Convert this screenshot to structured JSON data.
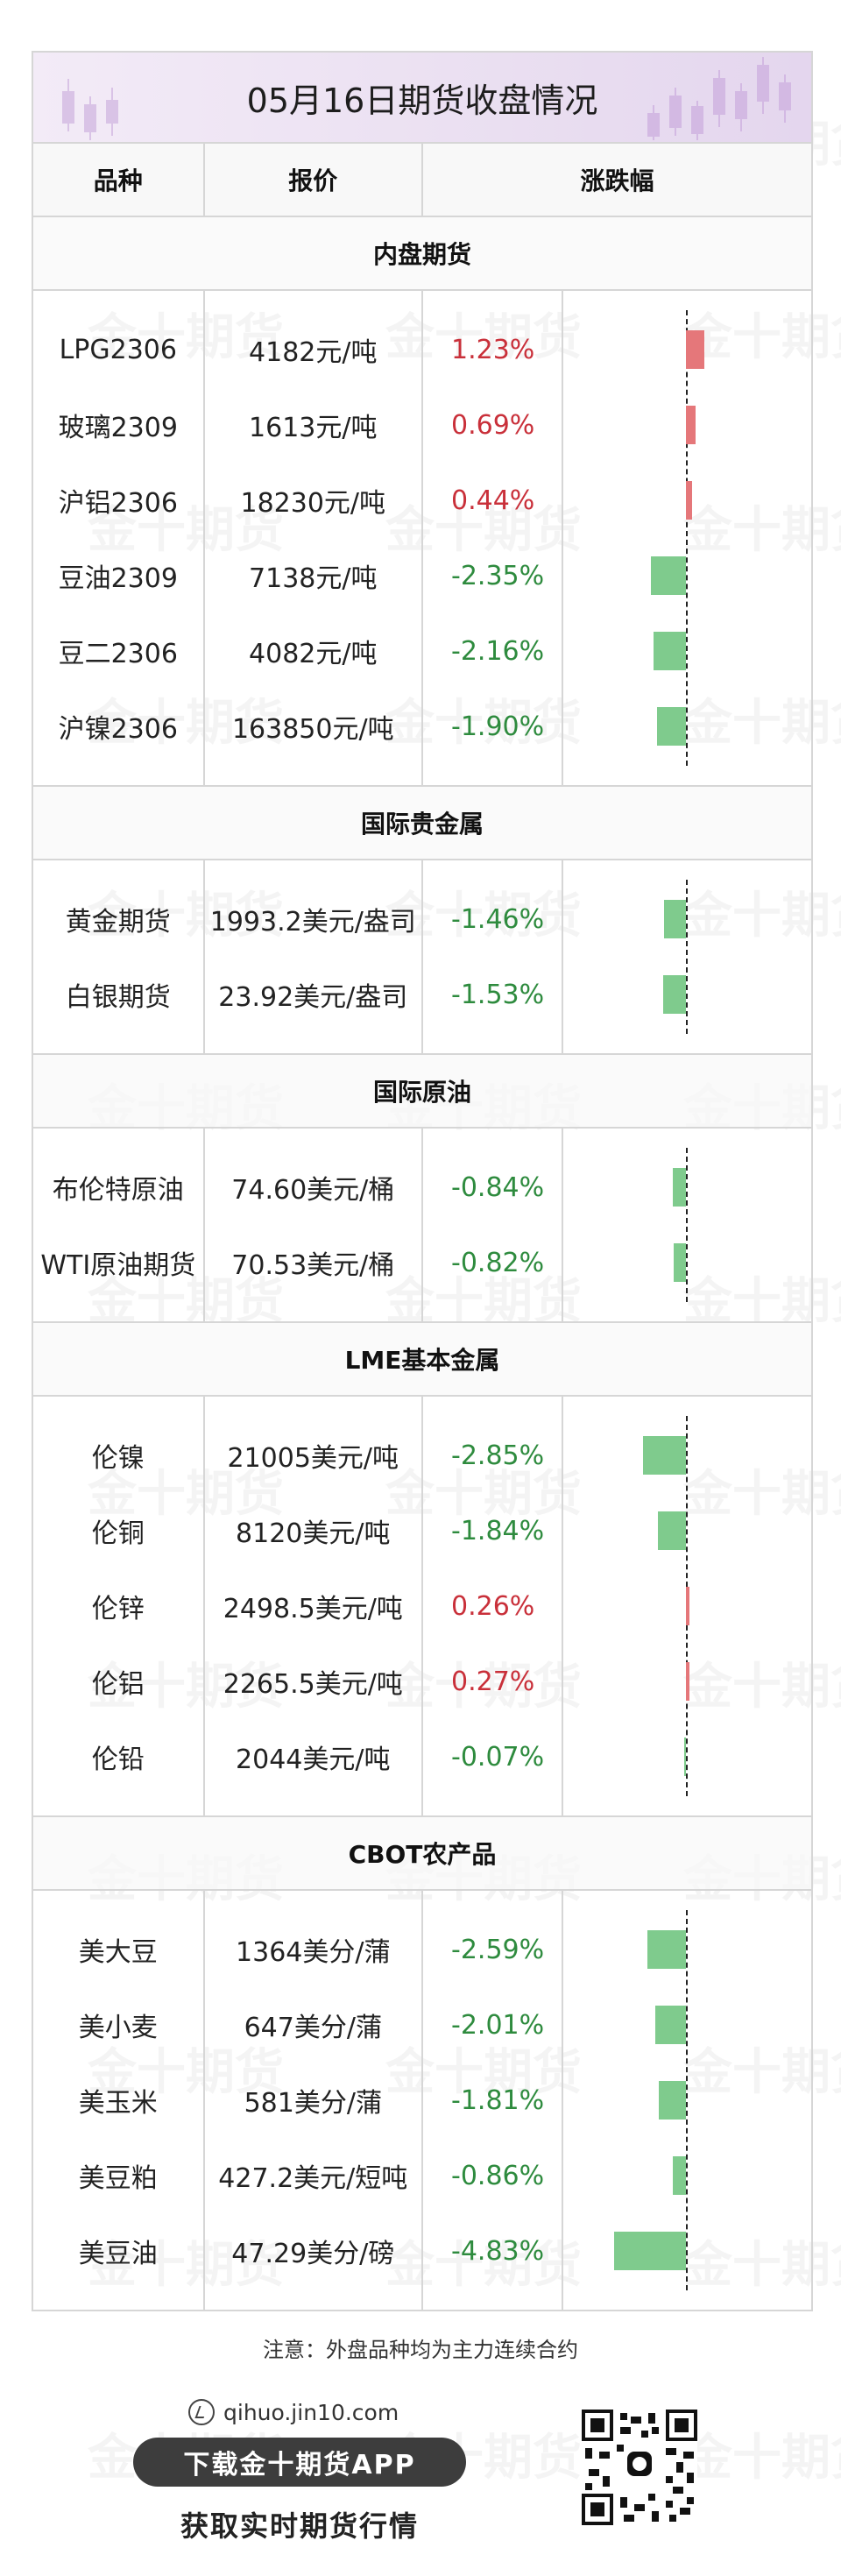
{
  "title": "05月16日期货收盘情况",
  "headers": {
    "variety": "品种",
    "price": "报价",
    "change": "涨跌幅"
  },
  "watermark": "金十期货",
  "colors": {
    "up": "#c9303a",
    "down": "#2e8b3e",
    "up_bar": "#e5777a",
    "down_bar": "#7fcb8d"
  },
  "sections": [
    {
      "title": "内盘期货",
      "rows": [
        {
          "name": "LPG2306",
          "price": "4182元/吨",
          "pct": "1.23%",
          "value": 1.23
        },
        {
          "name": "玻璃2309",
          "price": "1613元/吨",
          "pct": "0.69%",
          "value": 0.69
        },
        {
          "name": "沪铝2306",
          "price": "18230元/吨",
          "pct": "0.44%",
          "value": 0.44
        },
        {
          "name": "豆油2309",
          "price": "7138元/吨",
          "pct": "-2.35%",
          "value": -2.35
        },
        {
          "name": "豆二2306",
          "price": "4082元/吨",
          "pct": "-2.16%",
          "value": -2.16
        },
        {
          "name": "沪镍2306",
          "price": "163850元/吨",
          "pct": "-1.90%",
          "value": -1.9
        }
      ]
    },
    {
      "title": "国际贵金属",
      "rows": [
        {
          "name": "黄金期货",
          "price": "1993.2美元/盎司",
          "pct": "-1.46%",
          "value": -1.46
        },
        {
          "name": "白银期货",
          "price": "23.92美元/盎司",
          "pct": "-1.53%",
          "value": -1.53
        }
      ]
    },
    {
      "title": "国际原油",
      "rows": [
        {
          "name": "布伦特原油",
          "price": "74.60美元/桶",
          "pct": "-0.84%",
          "value": -0.84
        },
        {
          "name": "WTI原油期货",
          "price": "70.53美元/桶",
          "pct": "-0.82%",
          "value": -0.82
        }
      ]
    },
    {
      "title": "LME基本金属",
      "rows": [
        {
          "name": "伦镍",
          "price": "21005美元/吨",
          "pct": "-2.85%",
          "value": -2.85
        },
        {
          "name": "伦铜",
          "price": "8120美元/吨",
          "pct": "-1.84%",
          "value": -1.84
        },
        {
          "name": "伦锌",
          "price": "2498.5美元/吨",
          "pct": "0.26%",
          "value": 0.26
        },
        {
          "name": "伦铝",
          "price": "2265.5美元/吨",
          "pct": "0.27%",
          "value": 0.27
        },
        {
          "name": "伦铅",
          "price": "2044美元/吨",
          "pct": "-0.07%",
          "value": -0.07
        }
      ]
    },
    {
      "title": "CBOT农产品",
      "rows": [
        {
          "name": "美大豆",
          "price": "1364美分/蒲",
          "pct": "-2.59%",
          "value": -2.59
        },
        {
          "name": "美小麦",
          "price": "647美分/蒲",
          "pct": "-2.01%",
          "value": -2.01
        },
        {
          "name": "美玉米",
          "price": "581美分/蒲",
          "pct": "-1.81%",
          "value": -1.81
        },
        {
          "name": "美豆粕",
          "price": "427.2美元/短吨",
          "pct": "-0.86%",
          "value": -0.86
        },
        {
          "name": "美豆油",
          "price": "47.29美分/磅",
          "pct": "-4.83%",
          "value": -4.83
        }
      ]
    }
  ],
  "note": "注意：外盘品种均为主力连续合约",
  "footer": {
    "site": "qihuo.jin10.com",
    "app_button": "下载金十期货APP",
    "tagline": "获取实时期货行情"
  }
}
